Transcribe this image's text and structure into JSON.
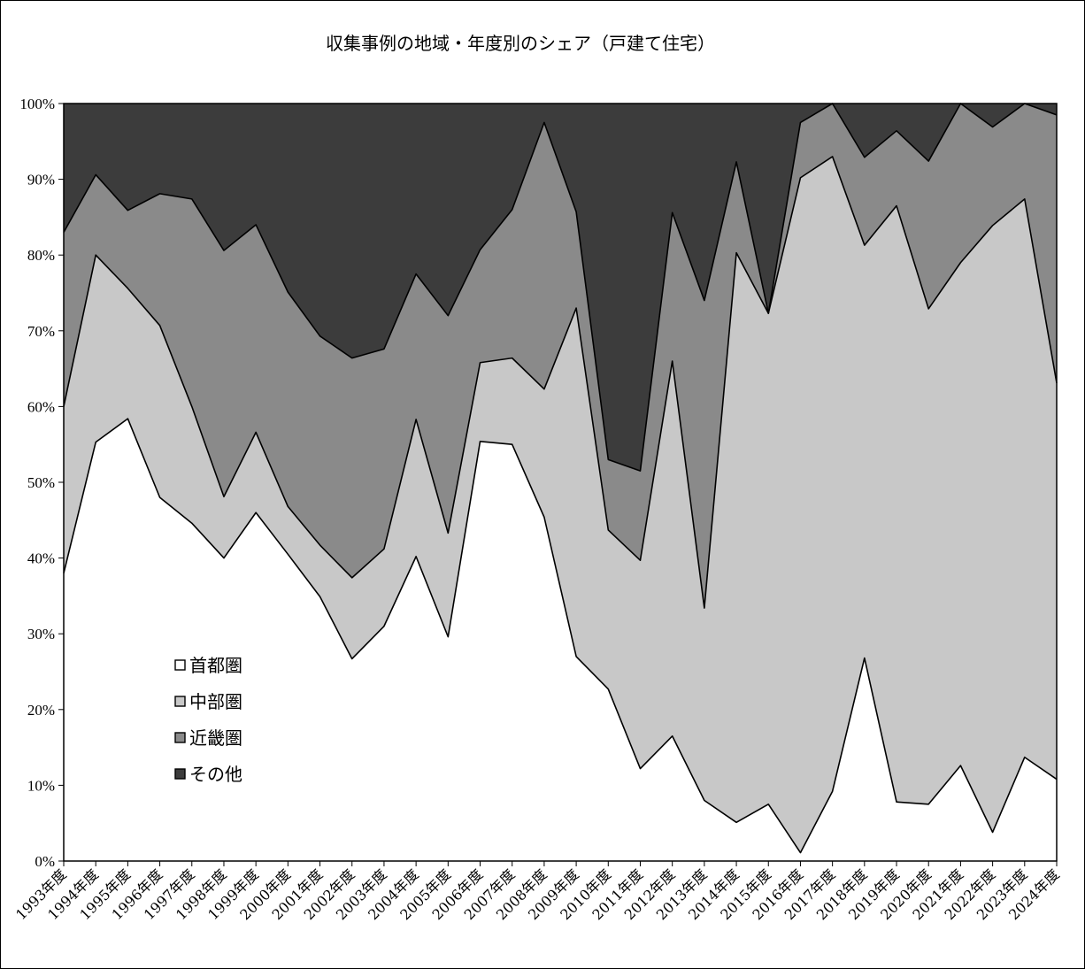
{
  "chart_data": {
    "type": "area",
    "stacked": "percent",
    "title": "収集事例の地域・年度別のシェア（戸建て住宅）",
    "xlabel": "",
    "ylabel": "",
    "ylim": [
      0,
      100
    ],
    "yticks": [
      "0%",
      "10%",
      "20%",
      "30%",
      "40%",
      "50%",
      "60%",
      "70%",
      "80%",
      "90%",
      "100%"
    ],
    "grid": false,
    "legend_position": "left-bottom",
    "categories": [
      "1993年度",
      "1994年度",
      "1995年度",
      "1996年度",
      "1997年度",
      "1998年度",
      "1999年度",
      "2000年度",
      "2001年度",
      "2002年度",
      "2003年度",
      "2004年度",
      "2005年度",
      "2006年度",
      "2007年度",
      "2008年度",
      "2009年度",
      "2010年度",
      "2011年度",
      "2012年度",
      "2013年度",
      "2014年度",
      "2015年度",
      "2016年度",
      "2017年度",
      "2018年度",
      "2019年度",
      "2020年度",
      "2021年度",
      "2022年度",
      "2023年度",
      "2024年度"
    ],
    "series": [
      {
        "name": "首都圏",
        "color": "#ffffff",
        "values": [
          38.0,
          55.3,
          58.4,
          48.0,
          44.6,
          40.0,
          46.0,
          40.5,
          34.9,
          26.7,
          31.0,
          40.2,
          29.6,
          55.4,
          55.0,
          45.4,
          27.0,
          22.7,
          12.2,
          16.5,
          8.0,
          5.1,
          7.5,
          1.1,
          9.2,
          26.8,
          7.8,
          7.5,
          12.6,
          3.8,
          13.7,
          10.8
        ]
      },
      {
        "name": "中部圏",
        "color": "#c8c8c8",
        "values": [
          22.0,
          24.7,
          17.2,
          22.7,
          15.4,
          8.1,
          10.6,
          6.3,
          6.8,
          10.7,
          10.2,
          18.1,
          13.7,
          10.4,
          11.4,
          16.9,
          46.0,
          21.0,
          27.5,
          49.5,
          25.4,
          75.2,
          64.8,
          89.1,
          83.8,
          54.5,
          78.7,
          65.4,
          66.4,
          80.1,
          73.7,
          52.3
        ]
      },
      {
        "name": "近畿圏",
        "color": "#8a8a8a",
        "values": [
          23.0,
          10.6,
          10.3,
          17.4,
          27.4,
          32.5,
          27.4,
          28.3,
          27.6,
          29.0,
          26.4,
          19.2,
          28.7,
          14.9,
          19.6,
          35.2,
          12.7,
          9.3,
          11.8,
          19.6,
          40.6,
          12.0,
          0.0,
          7.3,
          7.0,
          11.6,
          9.9,
          19.5,
          21.0,
          13.0,
          12.6,
          35.4
        ]
      },
      {
        "name": "その他",
        "color": "#3c3c3c",
        "values": [
          17.0,
          9.4,
          14.1,
          11.9,
          12.6,
          19.4,
          16.0,
          24.9,
          30.7,
          33.6,
          32.4,
          22.5,
          28.0,
          19.3,
          14.0,
          2.5,
          14.3,
          47.0,
          48.5,
          14.4,
          26.0,
          7.7,
          27.7,
          2.5,
          0.0,
          7.1,
          3.6,
          7.6,
          0.0,
          3.1,
          0.0,
          1.5
        ]
      }
    ]
  }
}
